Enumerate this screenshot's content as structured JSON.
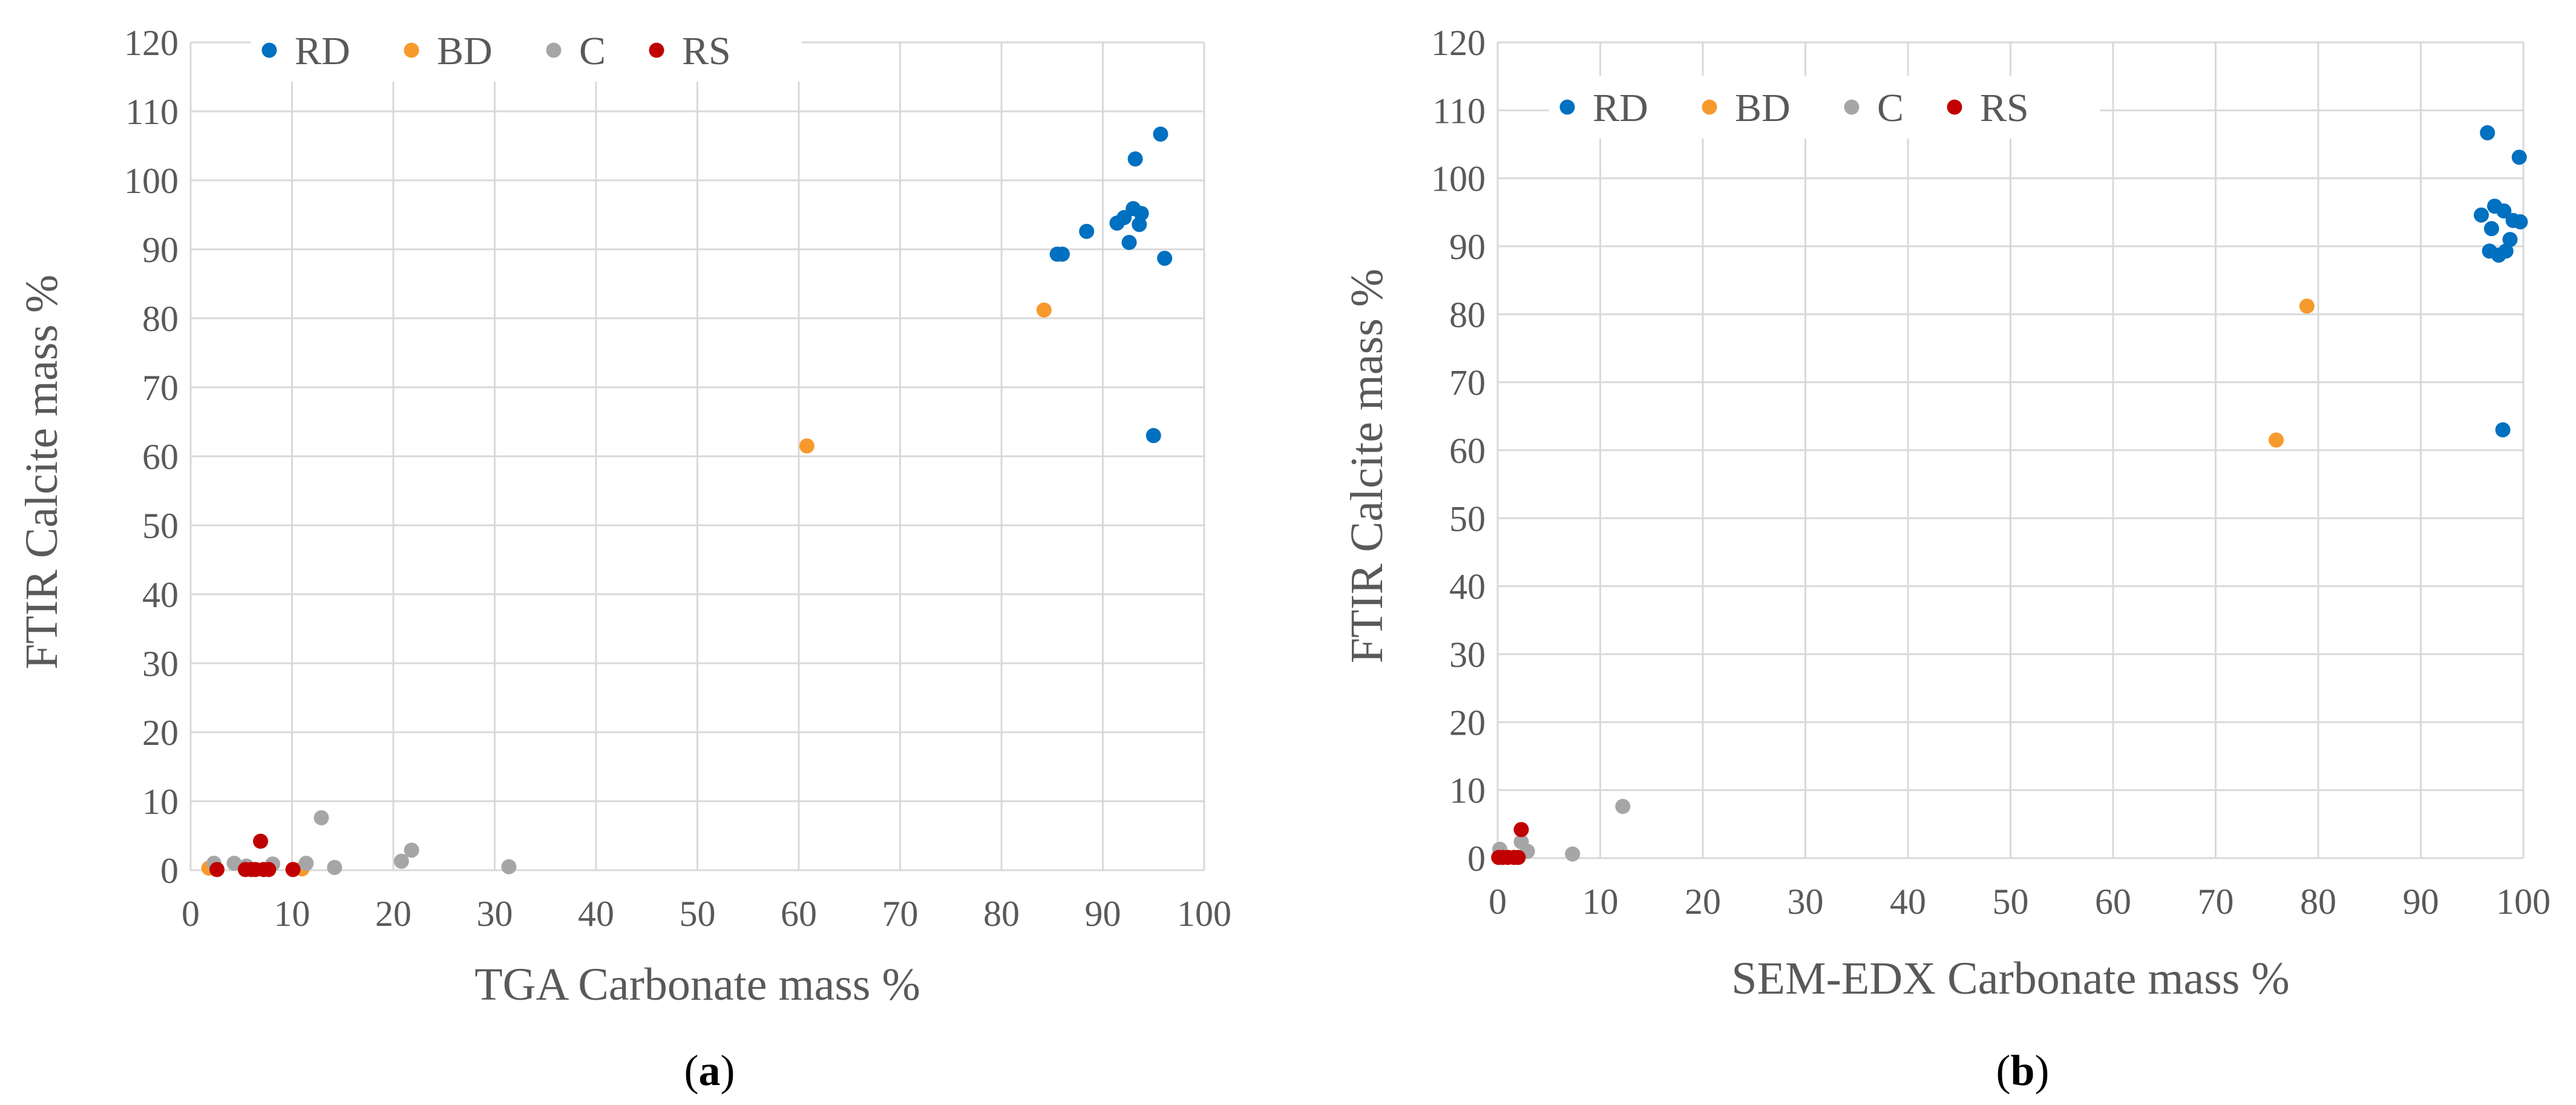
{
  "series_colors": {
    "RD": "#0070c0",
    "BD": "#f79a2e",
    "C": "#a6a6a6",
    "RS": "#c00000"
  },
  "chart_data": [
    {
      "type": "scatter",
      "panel": "a",
      "caption": {
        "open": "(",
        "letter": "a",
        "close": ")"
      },
      "xlabel": "TGA Carbonate mass %",
      "ylabel": "FTIR Calcite mass %",
      "xlim": [
        0,
        100
      ],
      "ylim": [
        0,
        120
      ],
      "xticks": [
        0,
        10,
        20,
        30,
        40,
        50,
        60,
        70,
        80,
        90,
        100
      ],
      "yticks": [
        0,
        10,
        20,
        30,
        40,
        50,
        60,
        70,
        80,
        90,
        100,
        110,
        120
      ],
      "grid": true,
      "legend": {
        "position": "top-left",
        "entries": [
          "RD",
          "BD",
          "C",
          "RS"
        ]
      },
      "series": [
        {
          "name": "RD",
          "points": [
            [
              85.5,
              89.3
            ],
            [
              86.0,
              89.3
            ],
            [
              88.4,
              92.6
            ],
            [
              91.4,
              93.8
            ],
            [
              92.1,
              94.6
            ],
            [
              92.6,
              91.0
            ],
            [
              93.0,
              95.9
            ],
            [
              93.2,
              103.1
            ],
            [
              93.6,
              93.6
            ],
            [
              93.8,
              95.2
            ],
            [
              95.0,
              63.0
            ],
            [
              95.7,
              106.7
            ],
            [
              96.1,
              88.7
            ]
          ]
        },
        {
          "name": "BD",
          "points": [
            [
              60.8,
              61.5
            ],
            [
              84.2,
              81.2
            ],
            [
              1.8,
              0.3
            ],
            [
              11.0,
              0.2
            ]
          ]
        },
        {
          "name": "C",
          "points": [
            [
              2.3,
              1.0
            ],
            [
              4.3,
              1.0
            ],
            [
              5.5,
              0.6
            ],
            [
              8.1,
              0.9
            ],
            [
              11.4,
              1.0
            ],
            [
              12.9,
              7.6
            ],
            [
              14.2,
              0.4
            ],
            [
              20.8,
              1.3
            ],
            [
              21.8,
              2.9
            ],
            [
              31.4,
              0.5
            ]
          ]
        },
        {
          "name": "RS",
          "points": [
            [
              2.6,
              0.1
            ],
            [
              5.4,
              0.1
            ],
            [
              6.0,
              0.1
            ],
            [
              6.4,
              0.1
            ],
            [
              6.9,
              4.2
            ],
            [
              7.2,
              0.1
            ],
            [
              7.7,
              0.1
            ],
            [
              10.1,
              0.1
            ]
          ]
        }
      ]
    },
    {
      "type": "scatter",
      "panel": "b",
      "caption": {
        "open": "(",
        "letter": "b",
        "close": ")"
      },
      "xlabel": "SEM-EDX Carbonate mass %",
      "ylabel": "FTIR Calcite mass %",
      "xlim": [
        0,
        100
      ],
      "ylim": [
        0,
        120
      ],
      "xticks": [
        0,
        10,
        20,
        30,
        40,
        50,
        60,
        70,
        80,
        90,
        100
      ],
      "yticks": [
        0,
        10,
        20,
        30,
        40,
        50,
        60,
        70,
        80,
        90,
        100,
        110,
        120
      ],
      "grid": true,
      "legend": {
        "position": "top-left",
        "entries": [
          "RD",
          "BD",
          "C",
          "RS"
        ]
      },
      "series": [
        {
          "name": "RD",
          "points": [
            [
              95.9,
              94.6
            ],
            [
              96.5,
              106.7
            ],
            [
              96.7,
              89.3
            ],
            [
              96.9,
              92.6
            ],
            [
              97.2,
              95.9
            ],
            [
              97.6,
              88.7
            ],
            [
              98.0,
              63.0
            ],
            [
              98.1,
              95.2
            ],
            [
              98.3,
              89.3
            ],
            [
              98.7,
              91.0
            ],
            [
              99.0,
              93.8
            ],
            [
              99.6,
              103.1
            ],
            [
              99.7,
              93.6
            ]
          ]
        },
        {
          "name": "BD",
          "points": [
            [
              75.9,
              61.5
            ],
            [
              78.9,
              81.2
            ]
          ]
        },
        {
          "name": "C",
          "points": [
            [
              0.2,
              1.3
            ],
            [
              2.3,
              2.4
            ],
            [
              2.9,
              1.0
            ],
            [
              7.3,
              0.6
            ],
            [
              12.2,
              7.6
            ]
          ]
        },
        {
          "name": "RS",
          "points": [
            [
              0.1,
              0.1
            ],
            [
              0.5,
              0.1
            ],
            [
              1.0,
              0.1
            ],
            [
              1.6,
              0.1
            ],
            [
              2.0,
              0.1
            ],
            [
              2.3,
              4.2
            ]
          ]
        }
      ]
    }
  ]
}
